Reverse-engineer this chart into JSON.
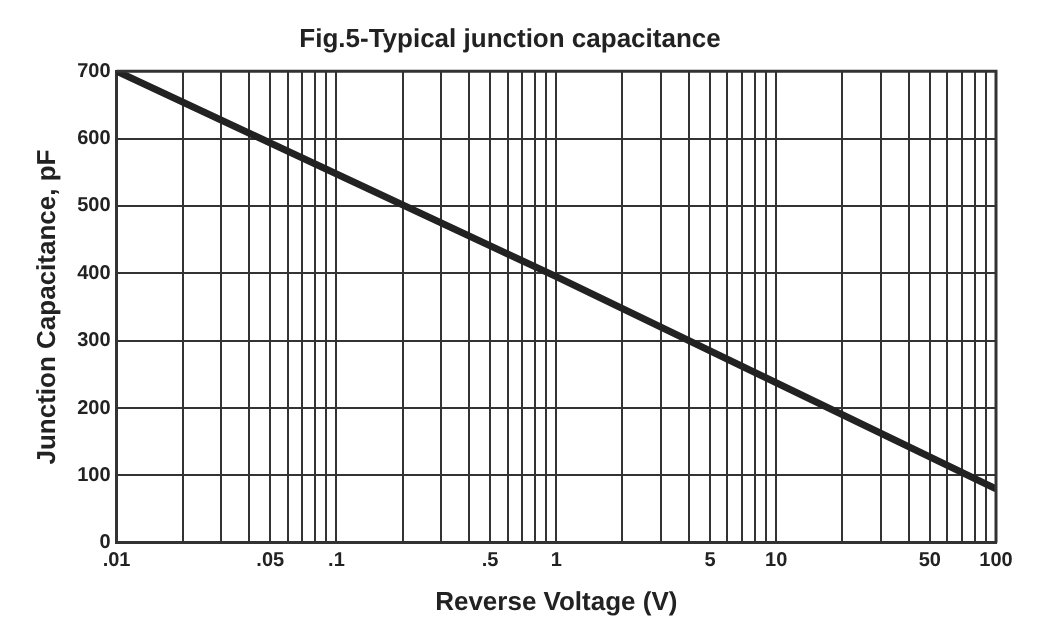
{
  "chart_data": {
    "type": "line",
    "title": "Fig.5-Typical junction capacitance",
    "xlabel": "Reverse Voltage (V)",
    "ylabel": "Junction Capacitance, pF",
    "log": "x",
    "x": [
      0.01,
      1,
      100
    ],
    "series": [
      {
        "color": "#222222",
        "values": [
          700,
          395,
          80
        ]
      }
    ],
    "xlim": [
      0.01,
      100
    ],
    "xticks": [
      {
        "value": 0.01,
        "label": ".01"
      },
      {
        "value": 0.02,
        "label": null
      },
      {
        "value": 0.03,
        "label": null
      },
      {
        "value": 0.04,
        "label": null
      },
      {
        "value": 0.05,
        "label": ".05"
      },
      {
        "value": 0.06,
        "label": null
      },
      {
        "value": 0.07,
        "label": null
      },
      {
        "value": 0.08,
        "label": null
      },
      {
        "value": 0.09,
        "label": null
      },
      {
        "value": 0.1,
        "label": ".1"
      },
      {
        "value": 0.2,
        "label": null
      },
      {
        "value": 0.3,
        "label": null
      },
      {
        "value": 0.4,
        "label": null
      },
      {
        "value": 0.5,
        "label": ".5"
      },
      {
        "value": 0.6,
        "label": null
      },
      {
        "value": 0.7,
        "label": null
      },
      {
        "value": 0.8,
        "label": null
      },
      {
        "value": 0.9,
        "label": null
      },
      1,
      {
        "value": 2,
        "label": null
      },
      {
        "value": 3,
        "label": null
      },
      {
        "value": 4,
        "label": null
      },
      5,
      {
        "value": 6,
        "label": null
      },
      {
        "value": 7,
        "label": null
      },
      {
        "value": 8,
        "label": null
      },
      {
        "value": 9,
        "label": null
      },
      10,
      {
        "value": 20,
        "label": null
      },
      {
        "value": 30,
        "label": null
      },
      {
        "value": 40,
        "label": null
      },
      50,
      {
        "value": 60,
        "label": null
      },
      {
        "value": 70,
        "label": null
      },
      {
        "value": 80,
        "label": null
      },
      {
        "value": 90,
        "label": null
      },
      100
    ],
    "ylim": [
      0,
      700
    ],
    "yticks": [
      0,
      100,
      200,
      300,
      400,
      500,
      600,
      700
    ],
    "grid": true,
    "legend": false,
    "marker": "none",
    "line_style": "solid"
  }
}
